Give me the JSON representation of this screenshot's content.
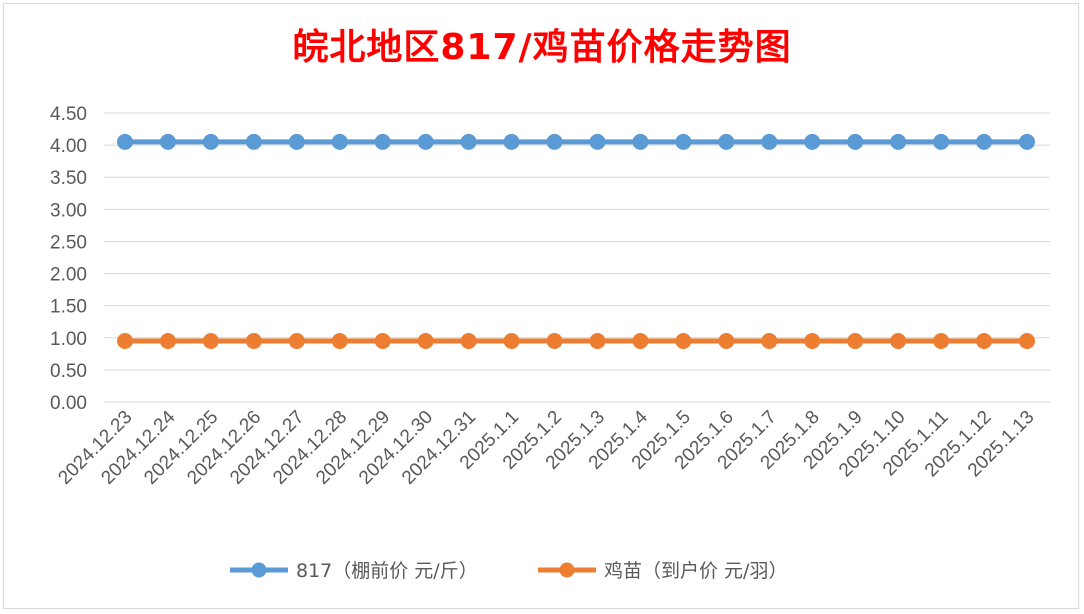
{
  "chart_data": {
    "type": "line",
    "title": "皖北地区817/鸡苗价格走势图",
    "xlabel": "",
    "ylabel": "",
    "ylim": [
      0,
      4.5
    ],
    "yticks": [
      "0.00",
      "0.50",
      "1.00",
      "1.50",
      "2.00",
      "2.50",
      "3.00",
      "3.50",
      "4.00",
      "4.50"
    ],
    "grid": true,
    "legend_position": "bottom",
    "categories": [
      "2024.12.23",
      "2024.12.24",
      "2024.12.25",
      "2024.12.26",
      "2024.12.27",
      "2024.12.28",
      "2024.12.29",
      "2024.12.30",
      "2024.12.31",
      "2025.1.1",
      "2025.1.2",
      "2025.1.3",
      "2025.1.4",
      "2025.1.5",
      "2025.1.6",
      "2025.1.7",
      "2025.1.8",
      "2025.1.9",
      "2025.1.10",
      "2025.1.11",
      "2025.1.12",
      "2025.1.13"
    ],
    "series": [
      {
        "name": "817（棚前价 元/斤）",
        "color": "#5b9bd5",
        "values": [
          4.05,
          4.05,
          4.05,
          4.05,
          4.05,
          4.05,
          4.05,
          4.05,
          4.05,
          4.05,
          4.05,
          4.05,
          4.05,
          4.05,
          4.05,
          4.05,
          4.05,
          4.05,
          4.05,
          4.05,
          4.05,
          4.05
        ]
      },
      {
        "name": "鸡苗（到户价 元/羽）",
        "color": "#ed7d31",
        "values": [
          0.95,
          0.95,
          0.95,
          0.95,
          0.95,
          0.95,
          0.95,
          0.95,
          0.95,
          0.95,
          0.95,
          0.95,
          0.95,
          0.95,
          0.95,
          0.95,
          0.95,
          0.95,
          0.95,
          0.95,
          0.95,
          0.95
        ]
      }
    ]
  }
}
